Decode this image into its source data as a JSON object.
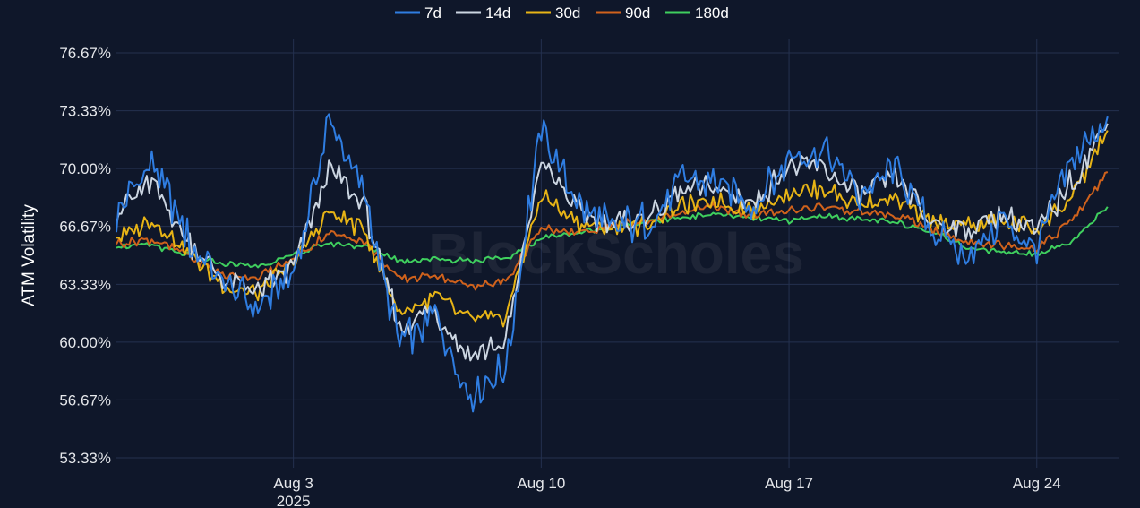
{
  "watermark": "BlockScholes",
  "colors": {
    "background": "#0f172a",
    "grid": "#24314f"
  },
  "chart_data": {
    "type": "line",
    "ylabel": "ATM Volatility",
    "xlabel": "",
    "ylim": [
      53.33,
      76.67
    ],
    "yticks": [
      "53.33%",
      "56.67%",
      "60.00%",
      "63.33%",
      "66.67%",
      "70.00%",
      "73.33%",
      "76.67%"
    ],
    "ytick_values": [
      53.33,
      56.67,
      60.0,
      63.33,
      66.67,
      70.0,
      73.33,
      76.67
    ],
    "x_range": [
      "2025-07-29",
      "2025-08-26T08:00"
    ],
    "xticks": [
      {
        "date": "2025-08-03",
        "label": "Aug 3",
        "sublabel": "2025"
      },
      {
        "date": "2025-08-10",
        "label": "Aug 10",
        "sublabel": ""
      },
      {
        "date": "2025-08-17",
        "label": "Aug 17",
        "sublabel": ""
      },
      {
        "date": "2025-08-24",
        "label": "Aug 24",
        "sublabel": ""
      }
    ],
    "grid": true,
    "legend_position": "top-center",
    "series": [
      {
        "name": "7d",
        "color": "#2f7de1",
        "x": [
          "2025-07-29",
          "2025-07-30",
          "2025-07-31",
          "2025-08-01",
          "2025-08-02",
          "2025-08-03",
          "2025-08-04",
          "2025-08-05",
          "2025-08-06",
          "2025-08-07",
          "2025-08-08",
          "2025-08-09",
          "2025-08-10",
          "2025-08-11",
          "2025-08-12",
          "2025-08-13",
          "2025-08-14",
          "2025-08-15",
          "2025-08-16",
          "2025-08-17",
          "2025-08-18",
          "2025-08-19",
          "2025-08-20",
          "2025-08-21",
          "2025-08-22",
          "2025-08-23",
          "2025-08-24",
          "2025-08-25",
          "2025-08-26"
        ],
        "values": [
          67.2,
          70.5,
          66.0,
          63.5,
          62.0,
          63.8,
          72.8,
          68.5,
          59.8,
          61.5,
          57.0,
          58.5,
          72.5,
          68.0,
          66.5,
          67.0,
          69.5,
          69.2,
          67.8,
          70.5,
          71.0,
          68.5,
          70.0,
          66.5,
          65.0,
          67.0,
          65.5,
          70.5,
          73.0
        ]
      },
      {
        "name": "14d",
        "color": "#cbd5e1",
        "x": [
          "2025-07-29",
          "2025-07-30",
          "2025-07-31",
          "2025-08-01",
          "2025-08-02",
          "2025-08-03",
          "2025-08-04",
          "2025-08-05",
          "2025-08-06",
          "2025-08-07",
          "2025-08-08",
          "2025-08-09",
          "2025-08-10",
          "2025-08-11",
          "2025-08-12",
          "2025-08-13",
          "2025-08-14",
          "2025-08-15",
          "2025-08-16",
          "2025-08-17",
          "2025-08-18",
          "2025-08-19",
          "2025-08-20",
          "2025-08-21",
          "2025-08-22",
          "2025-08-23",
          "2025-08-24",
          "2025-08-25",
          "2025-08-26"
        ],
        "values": [
          67.5,
          69.3,
          65.8,
          63.6,
          63.0,
          64.2,
          70.0,
          67.8,
          60.8,
          61.8,
          59.2,
          60.0,
          70.5,
          67.6,
          66.8,
          67.2,
          68.7,
          68.9,
          67.9,
          70.2,
          70.0,
          68.4,
          69.5,
          67.0,
          66.5,
          67.2,
          66.3,
          69.3,
          72.6
        ]
      },
      {
        "name": "30d",
        "color": "#e7b416",
        "x": [
          "2025-07-29",
          "2025-07-30",
          "2025-07-31",
          "2025-08-01",
          "2025-08-02",
          "2025-08-03",
          "2025-08-04",
          "2025-08-05",
          "2025-08-06",
          "2025-08-07",
          "2025-08-08",
          "2025-08-09",
          "2025-08-10",
          "2025-08-11",
          "2025-08-12",
          "2025-08-13",
          "2025-08-14",
          "2025-08-15",
          "2025-08-16",
          "2025-08-17",
          "2025-08-18",
          "2025-08-19",
          "2025-08-20",
          "2025-08-21",
          "2025-08-22",
          "2025-08-23",
          "2025-08-24",
          "2025-08-25",
          "2025-08-26"
        ],
        "values": [
          66.0,
          67.0,
          65.3,
          63.3,
          62.8,
          64.6,
          67.5,
          66.4,
          61.7,
          62.6,
          61.2,
          61.5,
          68.5,
          66.9,
          66.5,
          66.8,
          67.9,
          68.1,
          67.6,
          68.7,
          68.8,
          67.8,
          68.4,
          66.9,
          66.8,
          66.9,
          66.6,
          68.3,
          72.2
        ]
      },
      {
        "name": "90d",
        "color": "#d0621c",
        "x": [
          "2025-07-29",
          "2025-07-30",
          "2025-07-31",
          "2025-08-01",
          "2025-08-02",
          "2025-08-03",
          "2025-08-04",
          "2025-08-05",
          "2025-08-06",
          "2025-08-07",
          "2025-08-08",
          "2025-08-09",
          "2025-08-10",
          "2025-08-11",
          "2025-08-12",
          "2025-08-13",
          "2025-08-14",
          "2025-08-15",
          "2025-08-16",
          "2025-08-17",
          "2025-08-18",
          "2025-08-19",
          "2025-08-20",
          "2025-08-21",
          "2025-08-22",
          "2025-08-23",
          "2025-08-24",
          "2025-08-25",
          "2025-08-26"
        ],
        "values": [
          65.7,
          65.9,
          65.0,
          63.9,
          63.7,
          64.8,
          66.3,
          65.8,
          63.6,
          63.9,
          63.2,
          63.5,
          66.5,
          66.3,
          66.7,
          67.0,
          67.5,
          67.8,
          67.3,
          67.6,
          67.8,
          67.5,
          67.3,
          66.5,
          65.8,
          65.6,
          65.4,
          67.0,
          69.8
        ]
      },
      {
        "name": "180d",
        "color": "#3fcf5e",
        "x": [
          "2025-07-29",
          "2025-07-30",
          "2025-07-31",
          "2025-08-01",
          "2025-08-02",
          "2025-08-03",
          "2025-08-04",
          "2025-08-05",
          "2025-08-06",
          "2025-08-07",
          "2025-08-08",
          "2025-08-09",
          "2025-08-10",
          "2025-08-11",
          "2025-08-12",
          "2025-08-13",
          "2025-08-14",
          "2025-08-15",
          "2025-08-16",
          "2025-08-17",
          "2025-08-18",
          "2025-08-19",
          "2025-08-20",
          "2025-08-21",
          "2025-08-22",
          "2025-08-23",
          "2025-08-24",
          "2025-08-25",
          "2025-08-26"
        ],
        "values": [
          65.5,
          65.6,
          65.0,
          64.5,
          64.4,
          65.0,
          65.7,
          65.5,
          64.7,
          64.8,
          64.7,
          64.8,
          66.0,
          66.3,
          66.6,
          66.9,
          67.2,
          67.4,
          67.1,
          67.0,
          67.3,
          67.1,
          66.9,
          66.4,
          65.5,
          65.2,
          65.1,
          65.8,
          67.8
        ]
      }
    ]
  }
}
